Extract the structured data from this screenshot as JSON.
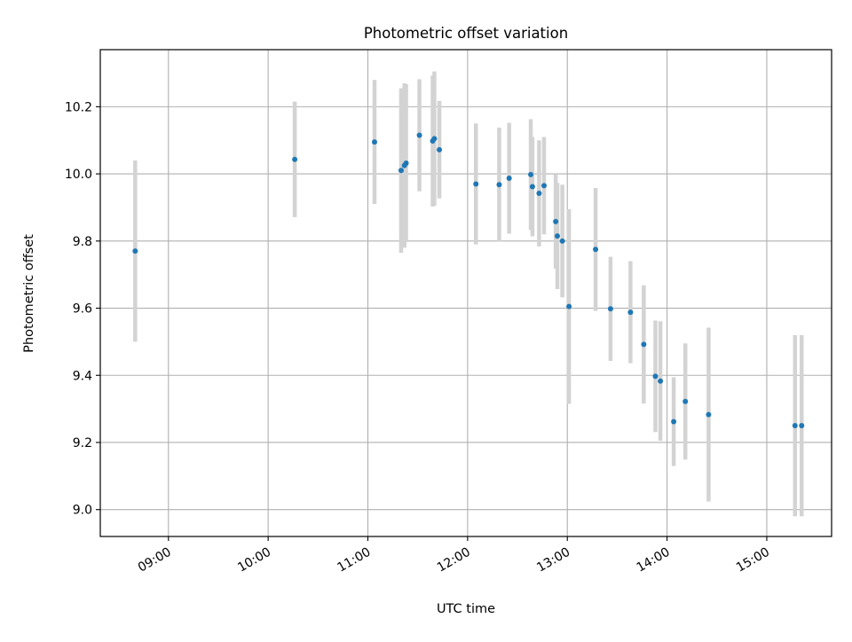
{
  "chart_data": {
    "type": "scatter",
    "title": "Photometric offset variation",
    "xlabel": "UTC time",
    "ylabel": "Photometric offset",
    "grid": true,
    "xlim": [
      "08:19",
      "15:39"
    ],
    "ylim": [
      8.92,
      10.37
    ],
    "x_ticks": [
      "09:00",
      "10:00",
      "11:00",
      "12:00",
      "13:00",
      "14:00",
      "15:00"
    ],
    "y_ticks": [
      9.0,
      9.2,
      9.4,
      9.6,
      9.8,
      10.0,
      10.2
    ],
    "y_tick_labels": [
      "9.0",
      "9.2",
      "9.4",
      "9.6",
      "9.8",
      "10.0",
      "10.2"
    ],
    "colors": {
      "points": "#1f77b4",
      "errorbars": "#d3d3d3",
      "grid": "#b0b0b0"
    },
    "series": [
      {
        "x": [
          "08:40",
          "10:16",
          "11:04",
          "11:20",
          "11:22",
          "11:23",
          "11:31",
          "11:39",
          "11:40",
          "11:43",
          "12:05",
          "12:19",
          "12:25",
          "12:38",
          "12:39",
          "12:43",
          "12:46",
          "12:53",
          "12:54",
          "12:57",
          "13:01",
          "13:17",
          "13:26",
          "13:38",
          "13:46",
          "13:53",
          "13:56",
          "14:04",
          "14:11",
          "14:25",
          "15:17",
          "15:21"
        ],
        "y": [
          9.77,
          10.043,
          10.095,
          10.01,
          10.025,
          10.032,
          10.115,
          10.098,
          10.105,
          10.072,
          9.97,
          9.968,
          9.987,
          9.998,
          9.962,
          9.942,
          9.965,
          9.858,
          9.815,
          9.8,
          9.605,
          9.775,
          9.598,
          9.588,
          9.492,
          9.397,
          9.383,
          9.262,
          9.322,
          9.283,
          9.25,
          9.25
        ],
        "yerr": [
          0.27,
          0.172,
          0.185,
          0.245,
          0.245,
          0.235,
          0.167,
          0.195,
          0.2,
          0.145,
          0.18,
          0.17,
          0.165,
          0.165,
          0.148,
          0.158,
          0.145,
          0.14,
          0.158,
          0.168,
          0.29,
          0.183,
          0.155,
          0.152,
          0.176,
          0.166,
          0.178,
          0.132,
          0.173,
          0.259,
          0.27,
          0.27
        ]
      }
    ]
  }
}
